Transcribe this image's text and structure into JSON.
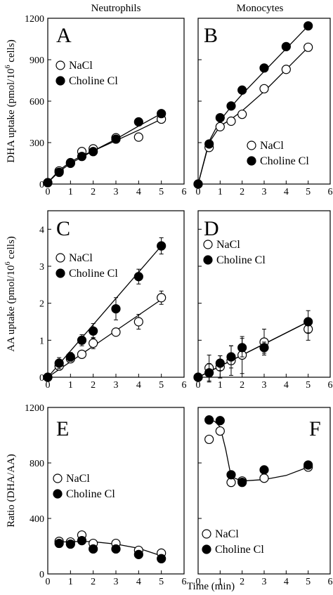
{
  "columns": [
    "Neutrophils",
    "Monocytes"
  ],
  "xlabel": "Time (min)",
  "chart_data": [
    {
      "type": "line",
      "panel": "A",
      "column": "Neutrophils",
      "ylabel": "DHA uptake (pmol/10^6 cells)",
      "xlim": [
        0,
        6
      ],
      "ylim": [
        0,
        1200
      ],
      "xticks": [
        0,
        1,
        2,
        3,
        4,
        5,
        6
      ],
      "yticks": [
        0,
        300,
        600,
        900,
        1200
      ],
      "legend": "top-left",
      "series": [
        {
          "name": "NaCl",
          "marker": "open-circle",
          "x": [
            0,
            0.5,
            1,
            1.5,
            2,
            3,
            4,
            5
          ],
          "y": [
            10,
            95,
            155,
            235,
            255,
            335,
            340,
            470
          ],
          "err": [
            0,
            0,
            0,
            0,
            0,
            0,
            0,
            15
          ],
          "fit_x": [
            0,
            0.5,
            1,
            1.5,
            2,
            3,
            4,
            5
          ],
          "fit_y": [
            10,
            100,
            160,
            205,
            240,
            315,
            390,
            470
          ]
        },
        {
          "name": "Choline Cl",
          "marker": "filled-circle",
          "x": [
            0,
            0.5,
            1,
            1.5,
            2,
            3,
            4,
            5
          ],
          "y": [
            10,
            85,
            150,
            200,
            235,
            325,
            450,
            510
          ],
          "err": [
            0,
            0,
            0,
            0,
            0,
            0,
            0,
            20
          ],
          "fit_x": [
            0,
            0.5,
            1,
            1.5,
            2,
            3,
            4,
            5
          ],
          "fit_y": [
            10,
            90,
            150,
            195,
            240,
            325,
            420,
            510
          ]
        }
      ]
    },
    {
      "type": "line",
      "panel": "B",
      "column": "Monocytes",
      "xlim": [
        0,
        6
      ],
      "ylim": [
        0,
        1200
      ],
      "xticks": [
        0,
        1,
        2,
        3,
        4,
        5,
        6
      ],
      "yticks": [
        0,
        300,
        600,
        900,
        1200
      ],
      "legend": "bottom-right",
      "series": [
        {
          "name": "NaCl",
          "marker": "open-circle",
          "x": [
            0,
            0.5,
            1,
            1.5,
            2,
            3,
            4,
            5
          ],
          "y": [
            0,
            265,
            415,
            455,
            505,
            690,
            830,
            990
          ],
          "err": [
            0,
            0,
            0,
            0,
            0,
            0,
            0,
            0
          ],
          "fit_x": [
            0,
            0.5,
            1,
            1.5,
            2,
            3,
            4,
            5
          ],
          "fit_y": [
            0,
            300,
            420,
            470,
            530,
            670,
            830,
            990
          ]
        },
        {
          "name": "Choline Cl",
          "marker": "filled-circle",
          "x": [
            0,
            0.5,
            1,
            1.5,
            2,
            3,
            4,
            5
          ],
          "y": [
            0,
            290,
            480,
            565,
            680,
            840,
            995,
            1145
          ],
          "err": [
            0,
            0,
            0,
            0,
            0,
            0,
            0,
            0
          ],
          "fit_x": [
            0,
            0.5,
            1,
            1.5,
            2,
            3,
            4,
            5
          ],
          "fit_y": [
            0,
            310,
            460,
            560,
            650,
            815,
            980,
            1145
          ]
        }
      ]
    },
    {
      "type": "line",
      "panel": "C",
      "column": "Neutrophils",
      "ylabel": "AA uptake (pmol/10^6 cells)",
      "xlim": [
        0,
        6
      ],
      "ylim": [
        0,
        4.5
      ],
      "xticks": [
        0,
        1,
        2,
        3,
        4,
        5,
        6
      ],
      "yticks": [
        0,
        1,
        2,
        3,
        4
      ],
      "legend": "top-left",
      "series": [
        {
          "name": "NaCl",
          "marker": "open-circle",
          "x": [
            0,
            0.5,
            1,
            1.5,
            2,
            3,
            4,
            5
          ],
          "y": [
            0,
            0.3,
            0.5,
            0.62,
            0.92,
            1.22,
            1.5,
            2.15
          ],
          "err": [
            0,
            0.08,
            0.08,
            0.08,
            0.15,
            0.1,
            0.2,
            0.18
          ],
          "fit_x": [
            0,
            5
          ],
          "fit_y": [
            0,
            2.1
          ]
        },
        {
          "name": "Choline Cl",
          "marker": "filled-circle",
          "x": [
            0,
            0.5,
            1,
            1.5,
            2,
            3,
            4,
            5
          ],
          "y": [
            0,
            0.38,
            0.55,
            1.0,
            1.25,
            1.85,
            2.72,
            3.55
          ],
          "err": [
            0,
            0.15,
            0.12,
            0.15,
            0.2,
            0.3,
            0.2,
            0.22
          ],
          "fit_x": [
            0,
            5
          ],
          "fit_y": [
            0,
            3.55
          ]
        }
      ]
    },
    {
      "type": "line",
      "panel": "D",
      "column": "Monocytes",
      "xlim": [
        0,
        6
      ],
      "ylim": [
        0,
        4.5
      ],
      "xticks": [
        0,
        1,
        2,
        3,
        4,
        5,
        6
      ],
      "yticks": [
        0,
        1,
        2,
        3,
        4
      ],
      "legend": "top-right",
      "series": [
        {
          "name": "NaCl",
          "marker": "open-circle",
          "x": [
            0,
            0.5,
            1,
            1.5,
            2,
            3,
            5
          ],
          "y": [
            0,
            0.25,
            0.28,
            0.45,
            0.6,
            0.95,
            1.3
          ],
          "err": [
            0,
            0.35,
            0.3,
            0.4,
            0.5,
            0.35,
            0.3
          ],
          "fit_x": [
            0,
            5
          ],
          "fit_y": [
            0,
            1.5
          ]
        },
        {
          "name": "Choline Cl",
          "marker": "filled-circle",
          "x": [
            0,
            0.5,
            1,
            1.5,
            2,
            3,
            5
          ],
          "y": [
            0,
            0.12,
            0.38,
            0.55,
            0.8,
            0.8,
            1.5
          ],
          "err": [
            0,
            0.25,
            0.2,
            0.3,
            0.25,
            0.15,
            0.3
          ],
          "fit_x": [
            0,
            5
          ],
          "fit_y": [
            0,
            1.5
          ]
        }
      ]
    },
    {
      "type": "line",
      "panel": "E",
      "column": "Neutrophils",
      "ylabel": "Ratio (DHA/AA)",
      "xlim": [
        0,
        6
      ],
      "ylim": [
        0,
        1200
      ],
      "xticks": [
        0,
        1,
        2,
        3,
        4,
        5,
        6
      ],
      "yticks": [
        0,
        400,
        800,
        1200
      ],
      "legend": "middle-left",
      "series": [
        {
          "name": "NaCl",
          "marker": "open-circle",
          "x": [
            0.5,
            1,
            1.5,
            2,
            3,
            4,
            5
          ],
          "y": [
            235,
            230,
            280,
            220,
            220,
            170,
            150
          ],
          "err": [
            0,
            0,
            0,
            0,
            0,
            0,
            0
          ],
          "fit_x": [
            0.5,
            1,
            1.5,
            2,
            3,
            4,
            5
          ],
          "fit_y": [
            230,
            232,
            235,
            232,
            215,
            185,
            130
          ]
        },
        {
          "name": "Choline Cl",
          "marker": "filled-circle",
          "x": [
            0.5,
            1,
            1.5,
            2,
            3,
            4,
            5
          ],
          "y": [
            220,
            215,
            240,
            180,
            180,
            140,
            110
          ],
          "err": [
            0,
            0,
            0,
            0,
            0,
            0,
            0
          ],
          "fit_x": [],
          "fit_y": []
        }
      ]
    },
    {
      "type": "line",
      "panel": "F",
      "column": "Monocytes",
      "xlim": [
        0,
        6
      ],
      "ylim": [
        0,
        1200
      ],
      "xticks": [
        0,
        1,
        2,
        3,
        4,
        5,
        6
      ],
      "yticks": [
        0,
        400,
        800,
        1200
      ],
      "legend": "bottom-left",
      "series": [
        {
          "name": "NaCl",
          "marker": "open-circle",
          "x": [
            0.5,
            1,
            1.5,
            2,
            3,
            5
          ],
          "y": [
            970,
            1030,
            660,
            670,
            690,
            770
          ],
          "err": [
            0,
            0,
            0,
            0,
            0,
            0
          ],
          "fit_x": [
            0.5,
            0.75,
            1,
            1.25,
            1.5,
            2,
            3,
            4,
            5
          ],
          "fit_y": [
            1110,
            1100,
            1060,
            900,
            700,
            670,
            680,
            710,
            770
          ]
        },
        {
          "name": "Choline Cl",
          "marker": "filled-circle",
          "x": [
            0.5,
            1,
            1.5,
            2,
            3,
            5
          ],
          "y": [
            1110,
            1105,
            715,
            660,
            750,
            785
          ],
          "err": [
            0,
            0,
            0,
            0,
            0,
            0
          ],
          "fit_x": [],
          "fit_y": []
        }
      ]
    }
  ]
}
